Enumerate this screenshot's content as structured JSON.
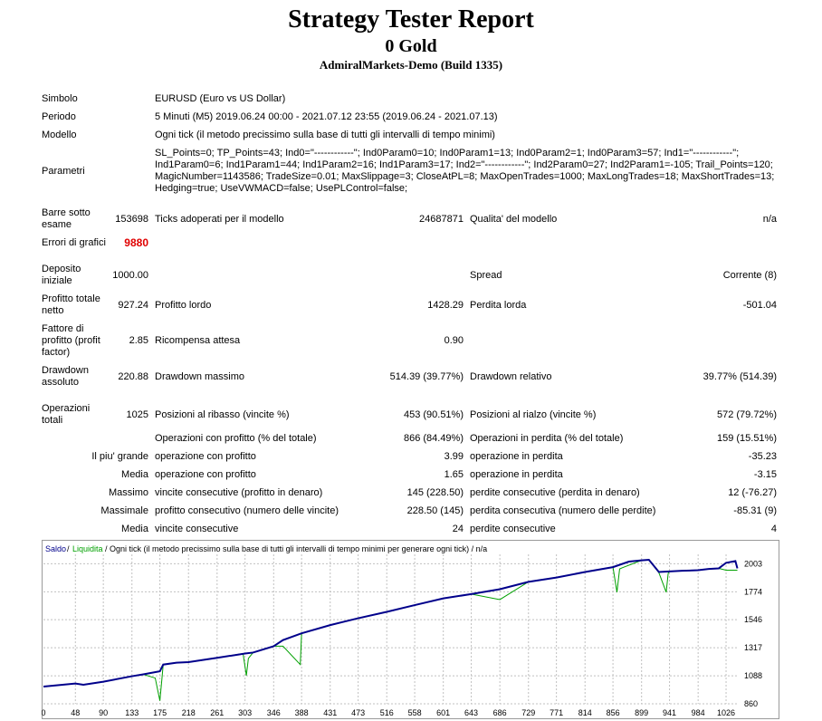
{
  "header": {
    "title": "Strategy Tester Report",
    "subtitle": "0 Gold",
    "server": "AdmiralMarkets-Demo (Build 1335)"
  },
  "info": {
    "symbol_label": "Simbolo",
    "symbol_value": "EURUSD (Euro vs US Dollar)",
    "period_label": "Periodo",
    "period_value": "5 Minuti (M5) 2019.06.24 00:00 - 2021.07.12 23:55 (2019.06.24 - 2021.07.13)",
    "model_label": "Modello",
    "model_value": "Ogni tick (il metodo precissimo sulla base di tutti gli intervalli di tempo minimi)",
    "params_label": "Parametri",
    "params_lines": [
      "SL_Points=0; TP_Points=43; Ind0=\"------------\"; Ind0Param0=10; Ind0Param1=13; Ind0Param2=1; Ind0Param3=57; Ind1=\"------------\";",
      "Ind1Param0=6; Ind1Param1=44; Ind1Param2=16; Ind1Param3=17; Ind2=\"------------\"; Ind2Param0=27; Ind2Param1=-105; Trail_Points=120;",
      "MagicNumber=1143586; TradeSize=0.01; MaxSlippage=3; CloseAtPL=8; MaxOpenTrades=1000; MaxLongTrades=18; MaxShortTrades=13;",
      "Hedging=true; UseVWMACD=false; UsePLControl=false;"
    ]
  },
  "stats": {
    "bars_label": "Barre sotto esame",
    "bars_value": "153698",
    "ticks_label": "Ticks adoperati per il modello",
    "ticks_value": "24687871",
    "quality_label": "Qualita' del modello",
    "quality_value": "n/a",
    "errors_label": "Errori di grafici",
    "errors_value": "9880",
    "deposit_label": "Deposito iniziale",
    "deposit_value": "1000.00",
    "spread_label": "Spread",
    "spread_value": "Corrente (8)",
    "netprofit_label": "Profitto totale netto",
    "netprofit_value": "927.24",
    "grossprofit_label": "Profitto lordo",
    "grossprofit_value": "1428.29",
    "grossloss_label": "Perdita lorda",
    "grossloss_value": "-501.04",
    "pf_label": "Fattore di profitto (profit factor)",
    "pf_value": "2.85",
    "expected_label": "Ricompensa attesa",
    "expected_value": "0.90",
    "absdd_label": "Drawdown assoluto",
    "absdd_value": "220.88",
    "maxdd_label": "Drawdown massimo",
    "maxdd_value": "514.39 (39.77%)",
    "reldd_label": "Drawdown relativo",
    "reldd_value": "39.77% (514.39)",
    "trades_label": "Operazioni totali",
    "trades_value": "1025",
    "short_label": "Posizioni al ribasso (vincite %)",
    "short_value": "453 (90.51%)",
    "long_label": "Posizioni al rialzo (vincite %)",
    "long_value": "572 (79.72%)",
    "profit_trades_label": "Operazioni con profitto (% del totale)",
    "profit_trades_value": "866 (84.49%)",
    "loss_trades_label": "Operazioni in perdita (% del totale)",
    "loss_trades_value": "159 (15.51%)",
    "largest_label": "Il piu' grande",
    "largest_profit_label": "operazione con profitto",
    "largest_profit_value": "3.99",
    "largest_loss_label": "operazione in perdita",
    "largest_loss_value": "-35.23",
    "avg_label": "Media",
    "avg_profit_label": "operazione con profitto",
    "avg_profit_value": "1.65",
    "avg_loss_label": "operazione in perdita",
    "avg_loss_value": "-3.15",
    "max_label": "Massimo",
    "max_wins_label": "vincite consecutive (profitto in denaro)",
    "max_wins_value": "145 (228.50)",
    "max_losses_label": "perdite consecutive (perdita in denaro)",
    "max_losses_value": "12 (-76.27)",
    "maximal_label": "Massimale",
    "maximal_wins_label": "profitto consecutivo (numero delle vincite)",
    "maximal_wins_value": "228.50 (145)",
    "maximal_losses_label": "perdita consecutiva (numero delle perdite)",
    "maximal_losses_value": "-85.31 (9)",
    "avgc_label": "Media",
    "avgc_wins_label": "vincite consecutive",
    "avgc_wins_value": "24",
    "avgc_losses_label": "perdite consecutive",
    "avgc_losses_value": "4"
  },
  "chart_data": {
    "type": "line",
    "legend": {
      "balance": "Saldo",
      "separator1": "/",
      "equity": "Liquidita",
      "description": "/ Ogni tick (il metodo precissimo sulla base di tutti gli intervalli di tempo minimi per generare ogni tick) / n/a"
    },
    "x_ticks": [
      "0",
      "48",
      "90",
      "133",
      "175",
      "218",
      "261",
      "303",
      "346",
      "388",
      "431",
      "473",
      "516",
      "558",
      "601",
      "643",
      "686",
      "729",
      "771",
      "814",
      "856",
      "899",
      "941",
      "984",
      "1026"
    ],
    "y_ticks": [
      "2003",
      "1774",
      "1546",
      "1317",
      "1088",
      "860"
    ],
    "xlim": [
      0,
      1045
    ],
    "ylim": [
      860,
      2035
    ],
    "colors": {
      "balance": "#00008b",
      "equity": "#00a000",
      "grid": "#c0c0c0"
    },
    "series": [
      {
        "name": "Saldo",
        "x": [
          0,
          48,
          60,
          90,
          133,
          150,
          175,
          180,
          200,
          218,
          261,
          303,
          315,
          346,
          360,
          388,
          431,
          473,
          516,
          558,
          601,
          643,
          686,
          729,
          771,
          814,
          856,
          880,
          899,
          910,
          925,
          941,
          960,
          984,
          1000,
          1015,
          1026,
          1040,
          1043
        ],
        "values": [
          1000,
          1025,
          1015,
          1040,
          1085,
          1100,
          1125,
          1180,
          1195,
          1200,
          1235,
          1270,
          1278,
          1330,
          1380,
          1435,
          1502,
          1558,
          1610,
          1665,
          1720,
          1755,
          1795,
          1855,
          1890,
          1935,
          1975,
          2020,
          2030,
          2035,
          1935,
          1940,
          1945,
          1950,
          1960,
          1965,
          2010,
          2025,
          1965
        ]
      },
      {
        "name": "Liquidita",
        "x": [
          0,
          48,
          60,
          90,
          133,
          150,
          168,
          175,
          178,
          180,
          200,
          218,
          261,
          300,
          305,
          308,
          315,
          346,
          360,
          386,
          388,
          431,
          473,
          516,
          558,
          601,
          643,
          686,
          729,
          771,
          814,
          856,
          862,
          866,
          870,
          899,
          910,
          925,
          936,
          939,
          941,
          960,
          984,
          1000,
          1015,
          1026,
          1040,
          1043
        ],
        "values": [
          1000,
          1025,
          1015,
          1040,
          1085,
          1100,
          1070,
          885,
          1060,
          1180,
          1195,
          1200,
          1235,
          1270,
          1090,
          1230,
          1278,
          1330,
          1330,
          1180,
          1435,
          1502,
          1558,
          1610,
          1665,
          1720,
          1755,
          1710,
          1855,
          1890,
          1935,
          1975,
          1770,
          1960,
          1970,
          2030,
          2035,
          1930,
          1770,
          1925,
          1940,
          1945,
          1950,
          1960,
          1965,
          1950,
          1950,
          1950
        ]
      }
    ]
  }
}
